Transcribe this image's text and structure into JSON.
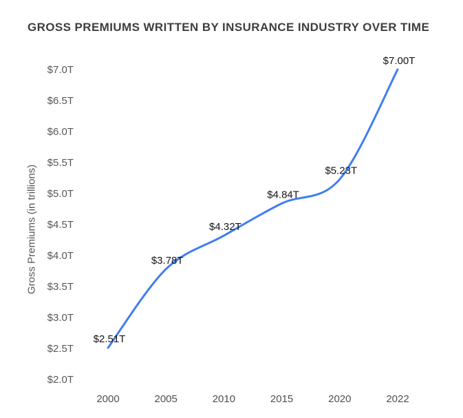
{
  "chart_data": {
    "type": "line",
    "title": "GROSS PREMIUMS WRITTEN BY INSURANCE INDUSTRY OVER TIME",
    "xlabel": "",
    "ylabel": "Gross Premiums (in trillions)",
    "categories": [
      "2000",
      "2005",
      "2010",
      "2015",
      "2020",
      "2022"
    ],
    "series": [
      {
        "name": "Gross Premiums Written",
        "values": [
          2.51,
          3.78,
          4.32,
          4.84,
          5.23,
          7.0
        ]
      }
    ],
    "point_labels": [
      "$2.51T",
      "$3.78T",
      "$4.32T",
      "$4.84T",
      "$5.23T",
      "$7.00T"
    ],
    "ylim": [
      2.0,
      7.0
    ],
    "ytick_step": 0.5,
    "ytick_labels": [
      "$2.0T",
      "$2.5T",
      "$3.0T",
      "$3.5T",
      "$4.0T",
      "$4.5T",
      "$5.0T",
      "$5.5T",
      "$6.0T",
      "$6.5T",
      "$7.0T"
    ],
    "grid": false,
    "legend": "none",
    "line_color": "#3f7df2",
    "title_color": "#3e3e3e",
    "tick_color": "#55575a",
    "point_label_color": "#141414"
  }
}
